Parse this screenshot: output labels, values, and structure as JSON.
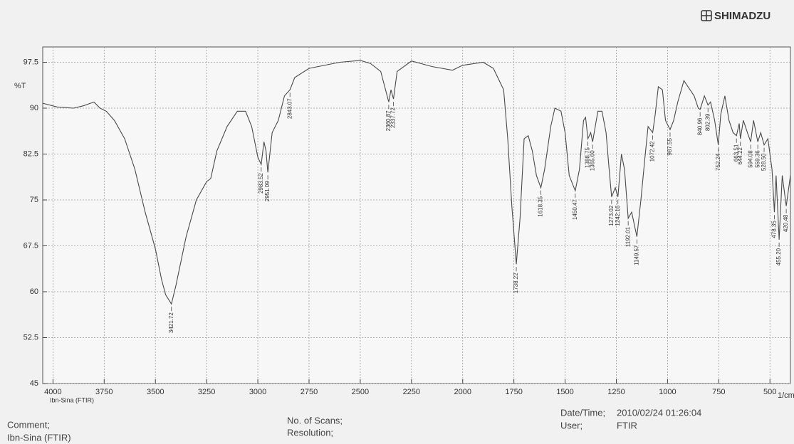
{
  "brand": "SHIMADZU",
  "footer": {
    "comment": "Comment;",
    "comment_value": "Ibn-Sina (FTIR)",
    "scans": "No. of Scans;",
    "resolution": "Resolution;",
    "datetime": "Date/Time;",
    "datetime_value": "2010/02/24 01:26:04",
    "user": "User;",
    "user_value": "FTIR"
  },
  "chart_data": {
    "type": "line",
    "y_label": "%T",
    "x_unit": "1/cm",
    "x_caption": "Ibn-Sina (FTIR)",
    "color": "#4a4a4a",
    "grid": true,
    "xlim": [
      4050,
      400
    ],
    "xticks": [
      4000,
      3750,
      3500,
      3250,
      3000,
      2750,
      2500,
      2250,
      2000,
      1750,
      1500,
      1250,
      1000,
      750,
      500
    ],
    "ylim": [
      45,
      100
    ],
    "yticks": [
      45,
      52.5,
      60,
      67.5,
      75,
      82.5,
      90,
      97.5
    ],
    "x": [
      4050,
      3980,
      3900,
      3850,
      3800,
      3770,
      3740,
      3700,
      3650,
      3600,
      3550,
      3500,
      3470,
      3450,
      3421.72,
      3400,
      3350,
      3300,
      3250,
      3230,
      3200,
      3150,
      3100,
      3060,
      3030,
      3000,
      2983.52,
      2970,
      2960,
      2951.09,
      2930,
      2900,
      2870,
      2843.07,
      2820,
      2750,
      2600,
      2500,
      2450,
      2400,
      2360.87,
      2350,
      2337.72,
      2320,
      2250,
      2150,
      2050,
      2000,
      1900,
      1850,
      1800,
      1780,
      1760,
      1738.22,
      1720,
      1700,
      1680,
      1660,
      1640,
      1618.35,
      1600,
      1570,
      1550,
      1520,
      1500,
      1480,
      1450.47,
      1430,
      1410,
      1400,
      1388.75,
      1375,
      1365.6,
      1340,
      1320,
      1300,
      1285,
      1273.02,
      1255,
      1242.16,
      1225,
      1210,
      1192.01,
      1175,
      1149.57,
      1130,
      1110,
      1095,
      1072.42,
      1060,
      1045,
      1025,
      1010,
      987.55,
      970,
      950,
      920,
      900,
      870,
      850,
      840.96,
      820,
      802.39,
      790,
      770,
      752.24,
      740,
      720,
      700,
      680,
      663.51,
      650,
      644.22,
      630,
      610,
      594.08,
      580,
      559.36,
      545,
      528.5,
      510,
      490,
      478.35,
      470,
      455.2,
      440,
      420.48,
      400
    ],
    "values": [
      90.8,
      90.2,
      90.0,
      90.4,
      91.0,
      90.0,
      89.5,
      88,
      85,
      80,
      73,
      67,
      62,
      59.5,
      58,
      61,
      69,
      75,
      78,
      78.5,
      83,
      87,
      89.5,
      89.5,
      87,
      82,
      80.8,
      84.5,
      83,
      79.5,
      86,
      88,
      92,
      93,
      95,
      96.5,
      97.5,
      97.8,
      97.3,
      96,
      91,
      93,
      91.5,
      96,
      97.7,
      96.8,
      96.2,
      97,
      97.5,
      96.5,
      93,
      85,
      74,
      64.5,
      72,
      85,
      85.5,
      83,
      79,
      77,
      80,
      87,
      90,
      89.5,
      86,
      79,
      76.5,
      80,
      88,
      88.5,
      85,
      86,
      84.5,
      89.5,
      89.5,
      86,
      80,
      75.5,
      77,
      75.5,
      82.5,
      80,
      72,
      73,
      69,
      75,
      82,
      87,
      86,
      89,
      93.5,
      93,
      88,
      86.5,
      88,
      91,
      94.5,
      93.5,
      92,
      90,
      89.8,
      92,
      90.5,
      91,
      88,
      84,
      89,
      92,
      88,
      86,
      85.5,
      87.5,
      85,
      88,
      86,
      84.5,
      88,
      84.5,
      86,
      84,
      85,
      80,
      73,
      79,
      68.5,
      79,
      74,
      79
    ],
    "peaks": [
      {
        "value": 3421.72,
        "label": "3421.72"
      },
      {
        "value": 2983.52,
        "label": "2983.52"
      },
      {
        "value": 2951.09,
        "label": "2951.09"
      },
      {
        "value": 2843.07,
        "label": "2843.07"
      },
      {
        "value": 2360.87,
        "label": "2360.87"
      },
      {
        "value": 2337.72,
        "label": "2337.72"
      },
      {
        "value": 1738.22,
        "label": "1738.22"
      },
      {
        "value": 1618.35,
        "label": "1618.35"
      },
      {
        "value": 1450.47,
        "label": "1450.47"
      },
      {
        "value": 1388.75,
        "label": "1388.75"
      },
      {
        "value": 1365.6,
        "label": "1365.60"
      },
      {
        "value": 1273.02,
        "label": "1273.02"
      },
      {
        "value": 1242.16,
        "label": "1242.16"
      },
      {
        "value": 1192.01,
        "label": "1192.01"
      },
      {
        "value": 1149.57,
        "label": "1149.57"
      },
      {
        "value": 1072.42,
        "label": "1072.42"
      },
      {
        "value": 987.55,
        "label": "987.55"
      },
      {
        "value": 840.96,
        "label": "840.96"
      },
      {
        "value": 802.39,
        "label": "802.39"
      },
      {
        "value": 752.24,
        "label": "752.24"
      },
      {
        "value": 663.51,
        "label": "663.51"
      },
      {
        "value": 644.22,
        "label": "644.22"
      },
      {
        "value": 594.08,
        "label": "594.08"
      },
      {
        "value": 559.36,
        "label": "559.36"
      },
      {
        "value": 528.5,
        "label": "528.50"
      },
      {
        "value": 478.35,
        "label": "478.35"
      },
      {
        "value": 455.2,
        "label": "455.20"
      },
      {
        "value": 420.48,
        "label": "420.48"
      }
    ]
  }
}
